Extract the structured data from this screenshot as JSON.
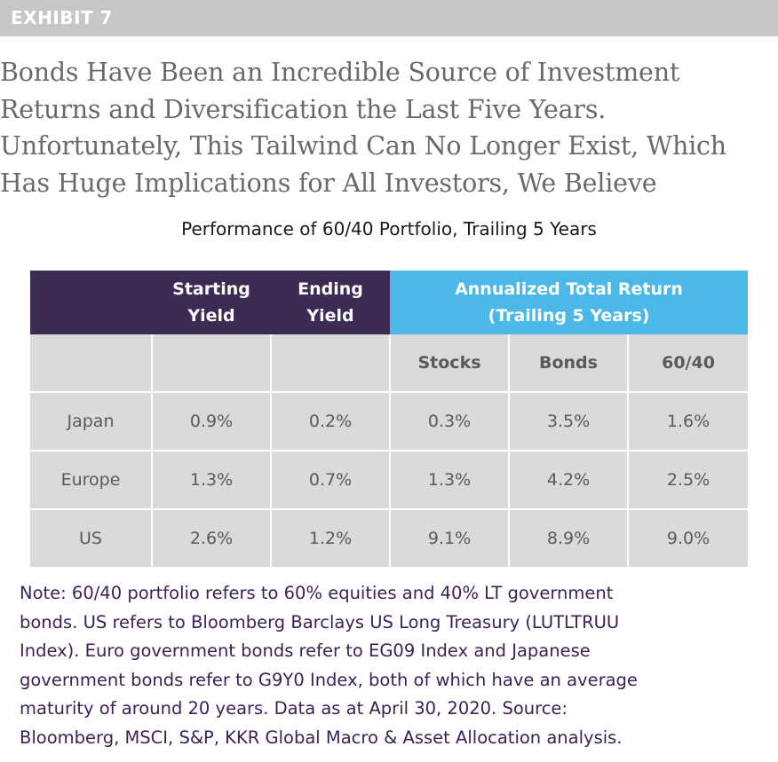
{
  "exhibit": {
    "label": "EXHIBIT 7"
  },
  "headline": {
    "lines": [
      "Bonds Have Been an Incredible Source of Investment",
      "Returns and Diversification the Last Five Years.",
      "Unfortunately, This Tailwind Can No Longer Exist, Which",
      "Has Huge Implications for All Investors, We Believe"
    ]
  },
  "subtitle": "Performance of 60/40 Portfolio, Trailing 5 Years",
  "table": {
    "header": {
      "starting_yield": [
        "Starting",
        "Yield"
      ],
      "ending_yield": [
        "Ending",
        "Yield"
      ],
      "annualized": [
        "Annualized Total Return",
        "(Trailing 5 Years)"
      ]
    },
    "subheader": [
      "",
      "",
      "",
      "Stocks",
      "Bonds",
      "60/40"
    ],
    "rows": [
      {
        "region": "Japan",
        "starting_yield": "0.9%",
        "ending_yield": "0.2%",
        "stocks": "0.3%",
        "bonds": "3.5%",
        "portfolio": "1.6%"
      },
      {
        "region": "Europe",
        "starting_yield": "1.3%",
        "ending_yield": "0.7%",
        "stocks": "1.3%",
        "bonds": "4.2%",
        "portfolio": "2.5%"
      },
      {
        "region": "US",
        "starting_yield": "2.6%",
        "ending_yield": "1.2%",
        "stocks": "9.1%",
        "bonds": "8.9%",
        "portfolio": "9.0%"
      }
    ]
  },
  "note": {
    "lines": [
      "Note: 60/40 portfolio refers to 60% equities and 40% LT government",
      "bonds. US refers to Bloomberg Barclays US Long Treasury (LUTLTRUU",
      "Index). Euro government bonds refer to EG09 Index and Japanese",
      "government bonds refer to G9Y0 Index, both of which have an average",
      "maturity of around 20 years. Data as at April 30, 2020. Source:",
      "Bloomberg, MSCI, S&P, KKR Global Macro & Asset Allocation analysis."
    ]
  },
  "colors": {
    "header_dark": "#3d2a55",
    "header_blue": "#4bb8e8",
    "cell_gray": "#dadada",
    "exhibit_bar": "#c7c7c7",
    "note_text": "#3d2156"
  }
}
